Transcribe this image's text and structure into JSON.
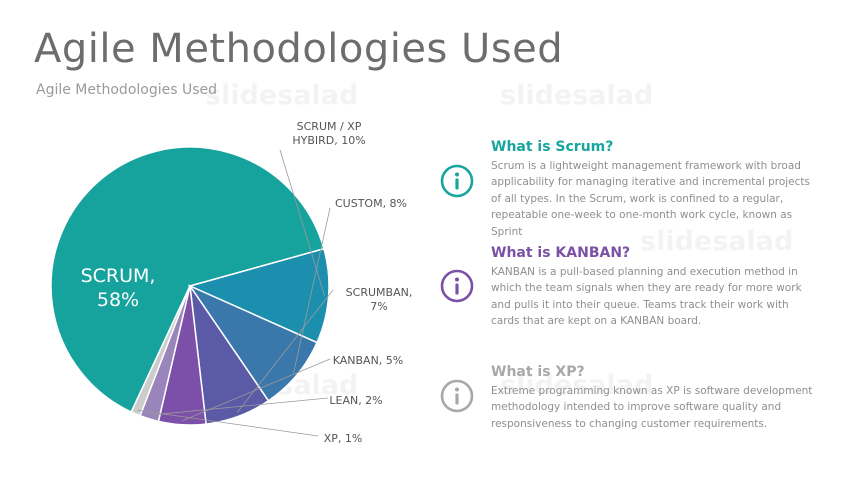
{
  "title": "Agile Methodologies Used",
  "subtitle": "Agile Methodologies Used",
  "watermark": "slidesalad",
  "colors": {
    "scrum": "#17a69f",
    "kanban": "#7b51a6",
    "xp": "#aaaaaa"
  },
  "chart_data": {
    "type": "pie",
    "slices": [
      {
        "label": "SCRUM, 58%",
        "label_lines": [
          "SCRUM,",
          "58%"
        ],
        "value": 58,
        "color": "#16a39d"
      },
      {
        "label": "SCRUM / XP HYBIRD, 10%",
        "label_lines": [
          "SCRUM / XP",
          "HYBIRD, 10%"
        ],
        "value": 10,
        "color": "#1d8fae"
      },
      {
        "label": "CUSTOM, 8%",
        "label_lines": [
          "CUSTOM, 8%"
        ],
        "value": 8,
        "color": "#3a78ac"
      },
      {
        "label": "SCRUMBAN, 7%",
        "label_lines": [
          "SCRUMBAN,",
          "7%"
        ],
        "value": 7,
        "color": "#5a5aa6"
      },
      {
        "label": "KANBAN, 5%",
        "label_lines": [
          "KANBAN, 5%"
        ],
        "value": 5,
        "color": "#7c4fa8"
      },
      {
        "label": "LEAN, 2%",
        "label_lines": [
          "LEAN, 2%"
        ],
        "value": 2,
        "color": "#9a85bb"
      },
      {
        "label": "XP, 1%",
        "label_lines": [
          "XP, 1%"
        ],
        "value": 1,
        "color": "#cccccc"
      }
    ]
  },
  "info": [
    {
      "title": "What is Scrum?",
      "color": "#17a69f",
      "icon": "info-icon",
      "text": "Scrum is a lightweight management framework with broad applicability for managing iterative and incremental projects of all types. In the Scrum, work is confined to a regular, repeatable one-week to one-month work cycle, known as Sprint"
    },
    {
      "title": "What is KANBAN?",
      "color": "#7b51a6",
      "icon": "info-icon",
      "text": "KANBAN is a pull-based planning and execution method in which the team signals when they are ready for more work and pulls it into their queue. Teams track their work with cards that are kept on a KANBAN board."
    },
    {
      "title": "What is XP?",
      "color": "#a8a8a8",
      "icon": "info-icon",
      "text": "Extreme programming known as XP is software development methodology intended to improve software quality and responsiveness to changing customer requirements."
    }
  ]
}
